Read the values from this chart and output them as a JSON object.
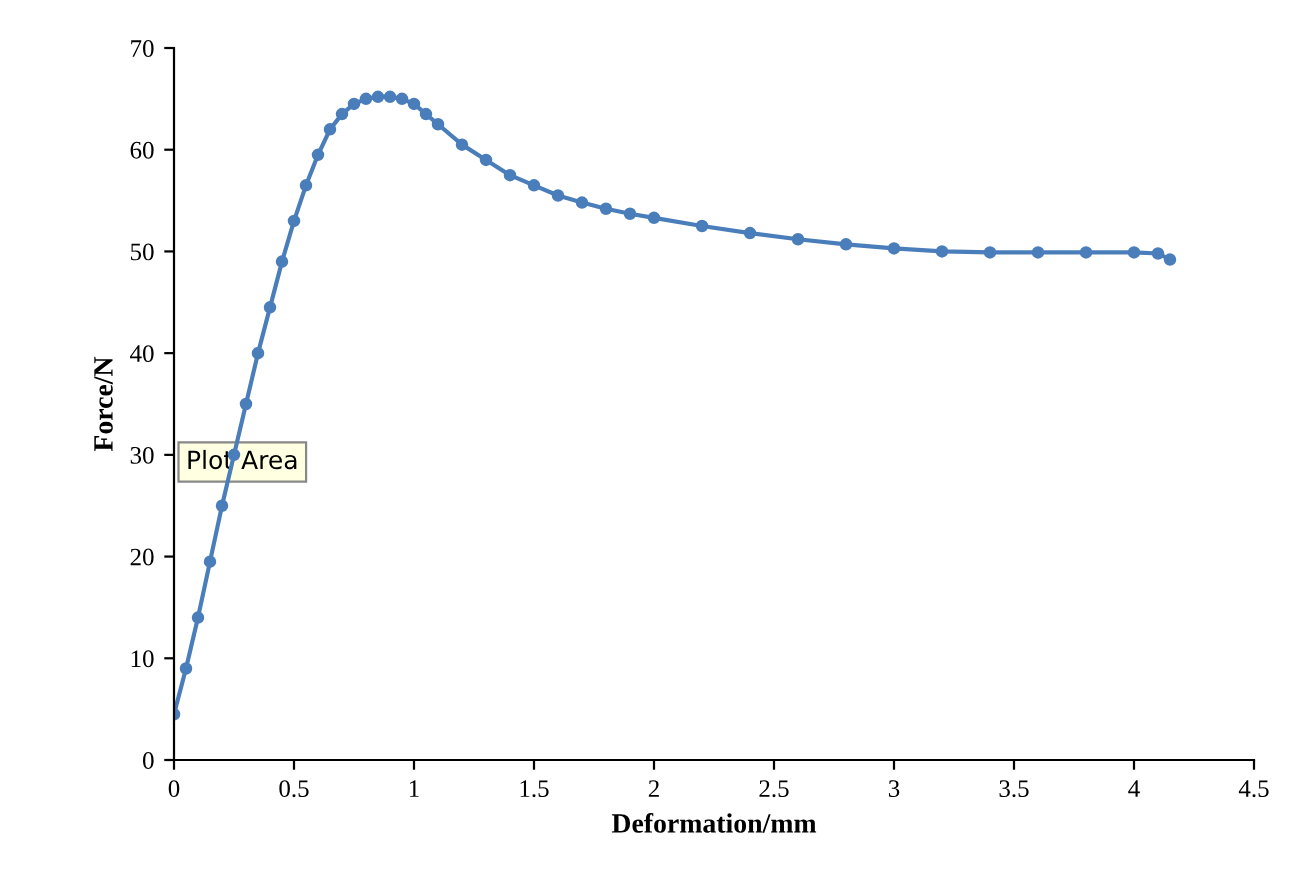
{
  "chart_data": {
    "type": "line",
    "xlabel": "Deformation/mm",
    "ylabel": "Force/N",
    "x": [
      0,
      0.05,
      0.1,
      0.15,
      0.2,
      0.25,
      0.3,
      0.35,
      0.4,
      0.45,
      0.5,
      0.55,
      0.6,
      0.65,
      0.7,
      0.75,
      0.8,
      0.85,
      0.9,
      0.95,
      1.0,
      1.05,
      1.1,
      1.2,
      1.3,
      1.4,
      1.5,
      1.6,
      1.7,
      1.8,
      1.9,
      2.0,
      2.2,
      2.4,
      2.6,
      2.8,
      3.0,
      3.2,
      3.4,
      3.6,
      3.8,
      4.0,
      4.1,
      4.15
    ],
    "series": [
      {
        "color": "#4a7ebb",
        "values": [
          4.5,
          9,
          14,
          19.5,
          25,
          30,
          35,
          40,
          44.5,
          49,
          53,
          56.5,
          59.5,
          62,
          63.5,
          64.5,
          65,
          65.2,
          65.2,
          65,
          64.5,
          63.5,
          62.5,
          60.5,
          59,
          57.5,
          56.5,
          55.5,
          54.8,
          54.2,
          53.7,
          53.3,
          52.5,
          51.8,
          51.2,
          50.7,
          50.3,
          50.0,
          49.9,
          49.9,
          49.9,
          49.9,
          49.8,
          49.2
        ]
      }
    ],
    "xlim": [
      0,
      4.5
    ],
    "xticks": [
      0,
      0.5,
      1,
      1.5,
      2,
      2.5,
      3,
      3.5,
      4,
      4.5
    ],
    "ylim": [
      0,
      70
    ],
    "yticks": [
      0,
      10,
      20,
      30,
      40,
      50,
      60,
      70
    ],
    "marker": "circle",
    "grid": false,
    "annotations": [
      "Plot Area"
    ]
  }
}
